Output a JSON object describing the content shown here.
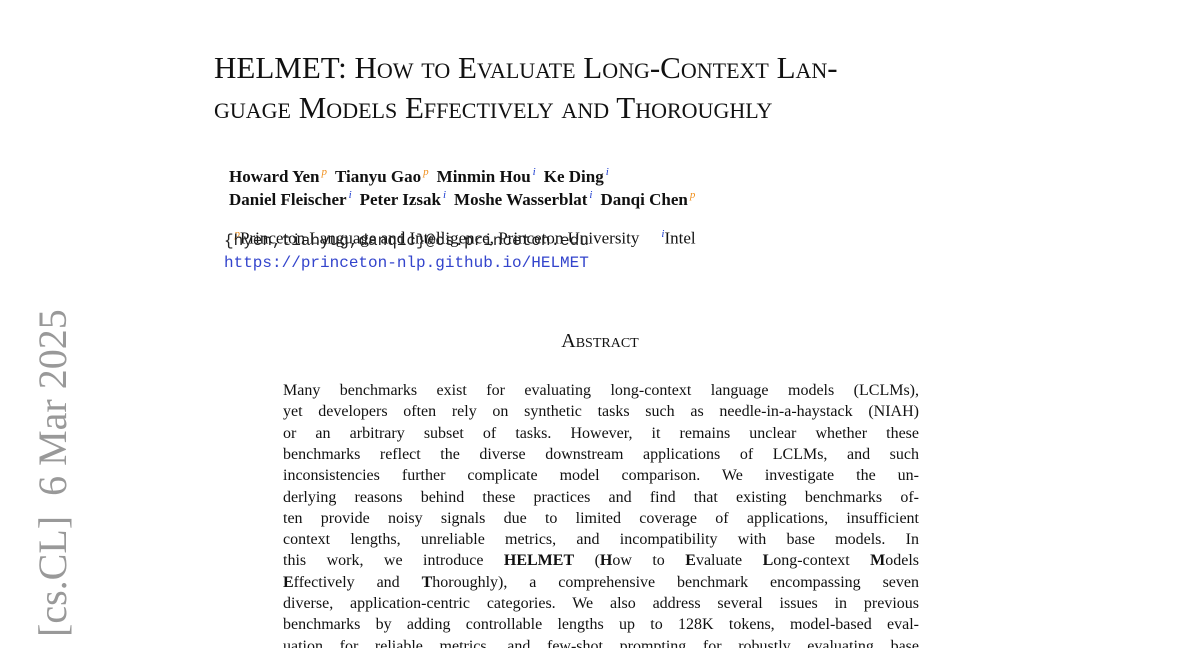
{
  "stamp": "[cs.CL]  6 Mar 2025",
  "title": [
    "HELMET: How to Evaluate Long-Context Lan-",
    "guage Models Effectively and Thoroughly"
  ],
  "authors": [
    [
      {
        "name": "Howard Yen",
        "mark": "p"
      },
      {
        "name": "Tianyu Gao",
        "mark": "p"
      },
      {
        "name": "Minmin Hou",
        "mark": "i"
      },
      {
        "name": "Ke Ding",
        "mark": "i"
      }
    ],
    [
      {
        "name": "Daniel Fleischer",
        "mark": "i"
      },
      {
        "name": "Peter Izsak",
        "mark": "i"
      },
      {
        "name": "Moshe Wasserblat",
        "mark": "i"
      },
      {
        "name": "Danqi Chen",
        "mark": "p"
      }
    ]
  ],
  "affiliations": [
    {
      "mark": "p",
      "name": "Princeton Language and Intelligence, Princeton University"
    },
    {
      "mark": "i",
      "name": "Intel"
    }
  ],
  "email": "{hyen,tianyug,danqic}@cs.princeton.edu",
  "url": "https://princeton-nlp.github.io/HELMET",
  "abstract": {
    "heading": "Abstract",
    "lines": [
      [
        "Many benchmarks exist for evaluating long-context language models (LCLMs),"
      ],
      [
        "yet developers often rely on synthetic tasks such as needle-in-a-haystack (NIAH)"
      ],
      [
        "or an arbitrary subset of tasks.  However, it remains unclear whether these"
      ],
      [
        "benchmarks reflect the diverse downstream applications of LCLMs, and such"
      ],
      [
        "inconsistencies further complicate model comparison.  We investigate the un-"
      ],
      [
        "derlying reasons behind these practices and find that existing benchmarks of-"
      ],
      [
        "ten provide noisy signals due to limited coverage of applications, insufficient"
      ],
      [
        "context lengths, unreliable metrics, and incompatibility with base models.  In"
      ],
      [
        "this work, we introduce ",
        {
          "bold": "HELMET"
        },
        " (",
        {
          "bold": "H"
        },
        "ow to ",
        {
          "bold": "E"
        },
        "valuate ",
        {
          "bold": "L"
        },
        "ong-context ",
        {
          "bold": "M"
        },
        "odels"
      ],
      [
        {
          "bold": "E"
        },
        "ffectively and ",
        {
          "bold": "T"
        },
        "horoughly), a comprehensive benchmark encompassing seven"
      ],
      [
        "diverse, application-centric categories. We also address several issues in previous"
      ],
      [
        "benchmarks by adding controllable lengths up to 128K tokens, model-based eval-"
      ],
      [
        "uation for reliable metrics, and few-shot prompting for robustly evaluating base"
      ]
    ]
  }
}
